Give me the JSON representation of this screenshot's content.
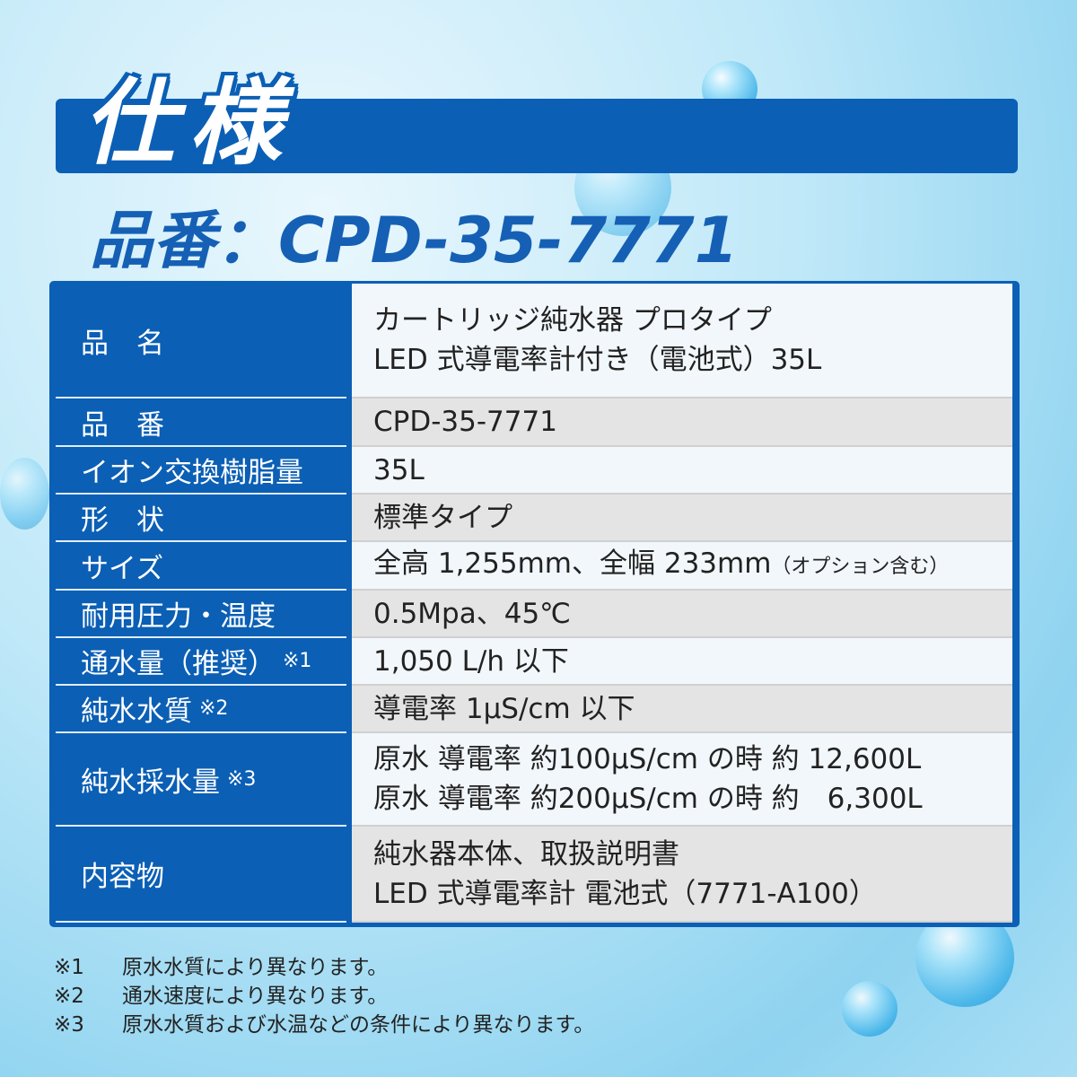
{
  "title": "仕様",
  "part_number_heading": "品番：CPD-35-7771",
  "rows": [
    {
      "label": "品　名",
      "lines": [
        "カートリッジ純水器 プロタイプ",
        "LED 式導電率計付き（電池式）35L"
      ]
    },
    {
      "label": "品　番",
      "lines": [
        "CPD-35-7771"
      ]
    },
    {
      "label": "イオン交換樹脂量",
      "lines": [
        "35L"
      ]
    },
    {
      "label": "形　状",
      "lines": [
        "標準タイプ"
      ]
    },
    {
      "label": "サイズ",
      "lines": [
        "全高 1,255mm、全幅 233mm"
      ],
      "note": "（オプション含む）"
    },
    {
      "label": "耐用圧力・温度",
      "lines": [
        "0.5Mpa、45℃"
      ]
    },
    {
      "label": "通水量（推奨）",
      "mark": "※1",
      "lines": [
        "1,050 L/h 以下"
      ]
    },
    {
      "label": "純水水質",
      "mark": "※2",
      "lines": [
        "導電率 1μS/cm 以下"
      ]
    },
    {
      "label": "純水採水量",
      "mark": "※3",
      "lines": [
        "原水 導電率 約100μS/cm の時 約 12,600L",
        "原水 導電率 約200μS/cm の時 約　6,300L"
      ]
    },
    {
      "label": "内容物",
      "lines": [
        "純水器本体、取扱説明書",
        "LED 式導電率計 電池式（7771-A100）"
      ]
    }
  ],
  "footnotes": [
    {
      "mark": "※1",
      "text": "原水水質により異なります。"
    },
    {
      "mark": "※2",
      "text": "通水速度により異なります。"
    },
    {
      "mark": "※3",
      "text": "原水水質および水温などの条件により異なります。"
    }
  ],
  "colors": {
    "primary": "#0b5fb5",
    "row_alt": "#e4e4e4"
  }
}
